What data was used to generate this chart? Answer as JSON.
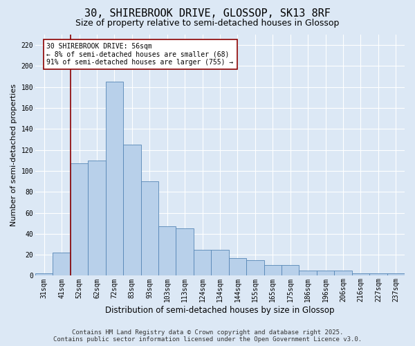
{
  "title1": "30, SHIREBROOK DRIVE, GLOSSOP, SK13 8RF",
  "title2": "Size of property relative to semi-detached houses in Glossop",
  "xlabel": "Distribution of semi-detached houses by size in Glossop",
  "ylabel": "Number of semi-detached properties",
  "categories": [
    "31sqm",
    "41sqm",
    "52sqm",
    "62sqm",
    "72sqm",
    "83sqm",
    "93sqm",
    "103sqm",
    "113sqm",
    "124sqm",
    "134sqm",
    "144sqm",
    "155sqm",
    "165sqm",
    "175sqm",
    "186sqm",
    "196sqm",
    "206sqm",
    "216sqm",
    "227sqm",
    "237sqm"
  ],
  "values": [
    2,
    22,
    107,
    110,
    185,
    125,
    90,
    47,
    45,
    25,
    25,
    17,
    15,
    10,
    10,
    5,
    5,
    5,
    2,
    2,
    2
  ],
  "bar_color": "#b8d0ea",
  "bar_edge_color": "#5585b5",
  "vline_x_index": 1.5,
  "annotation_line1": "30 SHIREBROOK DRIVE: 56sqm",
  "annotation_line2": "← 8% of semi-detached houses are smaller (68)",
  "annotation_line3": "91% of semi-detached houses are larger (755) →",
  "ylim": [
    0,
    230
  ],
  "yticks": [
    0,
    20,
    40,
    60,
    80,
    100,
    120,
    140,
    160,
    180,
    200,
    220
  ],
  "bg_color": "#dce8f5",
  "plot_bg_color": "#dce8f5",
  "grid_color": "#ffffff",
  "footer1": "Contains HM Land Registry data © Crown copyright and database right 2025.",
  "footer2": "Contains public sector information licensed under the Open Government Licence v3.0.",
  "title1_fontsize": 11,
  "title2_fontsize": 9,
  "xlabel_fontsize": 8.5,
  "ylabel_fontsize": 8,
  "tick_fontsize": 7,
  "footer_fontsize": 6.5,
  "annot_fontsize": 7
}
